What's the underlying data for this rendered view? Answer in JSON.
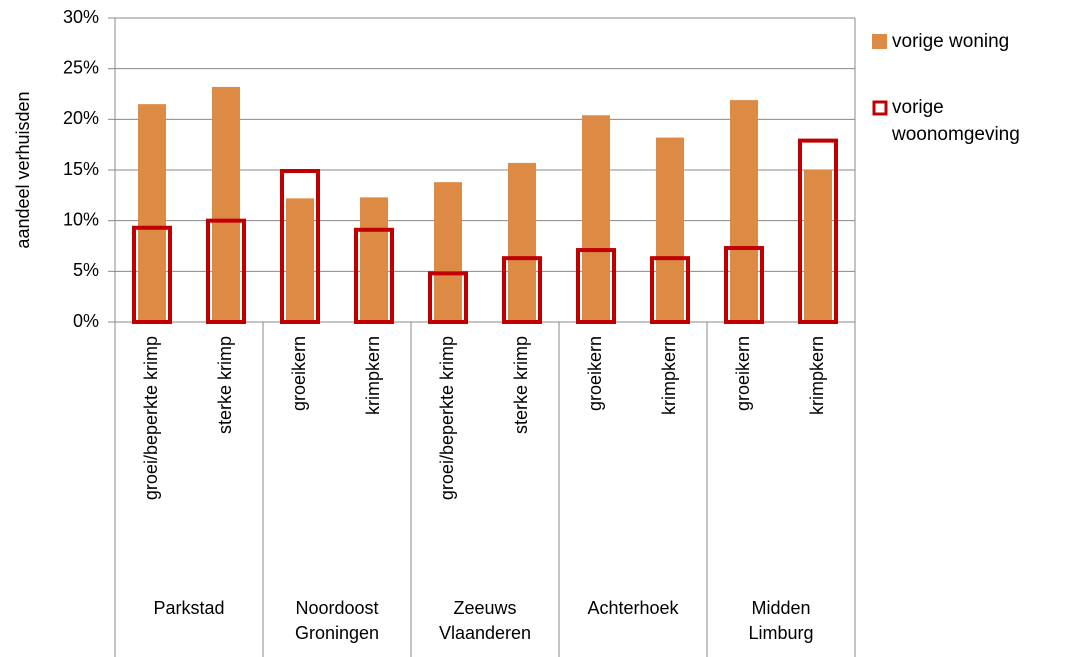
{
  "chart_data": {
    "type": "bar",
    "y_label": "aandeel verhuisden",
    "groups": [
      {
        "name": "Parkstad",
        "categories": [
          "groei/beperkte krimp",
          "sterke krimp"
        ]
      },
      {
        "name": "Noordoost Groningen",
        "categories": [
          "groeikern",
          "krimpkern"
        ]
      },
      {
        "name": "Zeeuws Vlaanderen",
        "categories": [
          "groei/beperkte krimp",
          "sterke krimp"
        ]
      },
      {
        "name": "Achterhoek",
        "categories": [
          "groeikern",
          "krimpkern"
        ]
      },
      {
        "name": "Midden Limburg",
        "categories": [
          "groeikern",
          "krimpkern"
        ]
      }
    ],
    "series": [
      {
        "name": "vorige woning",
        "color": "#dd8a44",
        "style": "filled",
        "values": [
          21.5,
          23.2,
          12.2,
          12.3,
          13.8,
          15.7,
          20.4,
          18.2,
          21.9,
          15.0
        ]
      },
      {
        "name": "vorige woonomgeving",
        "color": "#c00000",
        "style": "outline",
        "values": [
          9.3,
          10.0,
          14.9,
          9.1,
          4.8,
          6.3,
          7.1,
          6.3,
          7.3,
          17.9
        ]
      }
    ],
    "ylim": [
      0,
      30
    ],
    "yticks": [
      {
        "value": 0,
        "label": "0%"
      },
      {
        "value": 5,
        "label": "5%"
      },
      {
        "value": 10,
        "label": "10%"
      },
      {
        "value": 15,
        "label": "15%"
      },
      {
        "value": 20,
        "label": "20%"
      },
      {
        "value": 25,
        "label": "25%"
      },
      {
        "value": 30,
        "label": "30%"
      }
    ],
    "grid": true
  }
}
